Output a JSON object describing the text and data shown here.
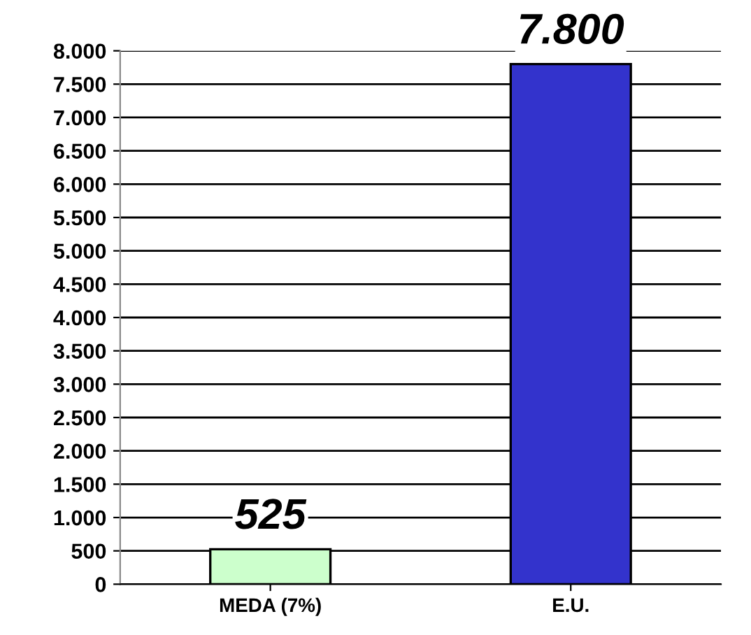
{
  "chart_data": {
    "type": "bar",
    "categories": [
      "MEDA (7%)",
      "E.U."
    ],
    "values": [
      525,
      7800
    ],
    "colors": [
      "#ccffcc",
      "#3333cc"
    ],
    "value_labels": [
      "525",
      "7.800"
    ],
    "ylim": [
      0,
      8000
    ],
    "yticks": [
      {
        "value": 0,
        "label": "0"
      },
      {
        "value": 500,
        "label": "500"
      },
      {
        "value": 1000,
        "label": "1.000"
      },
      {
        "value": 1500,
        "label": "1.500"
      },
      {
        "value": 2000,
        "label": "2.000"
      },
      {
        "value": 2500,
        "label": "2.500"
      },
      {
        "value": 3000,
        "label": "3.000"
      },
      {
        "value": 3500,
        "label": "3.500"
      },
      {
        "value": 4000,
        "label": "4.000"
      },
      {
        "value": 4500,
        "label": "4.500"
      },
      {
        "value": 5000,
        "label": "5.000"
      },
      {
        "value": 5500,
        "label": "5.500"
      },
      {
        "value": 6000,
        "label": "6.000"
      },
      {
        "value": 6500,
        "label": "6.500"
      },
      {
        "value": 7000,
        "label": "7.000"
      },
      {
        "value": 7500,
        "label": "7.500"
      },
      {
        "value": 8000,
        "label": "8.000"
      }
    ],
    "grid": "y"
  }
}
